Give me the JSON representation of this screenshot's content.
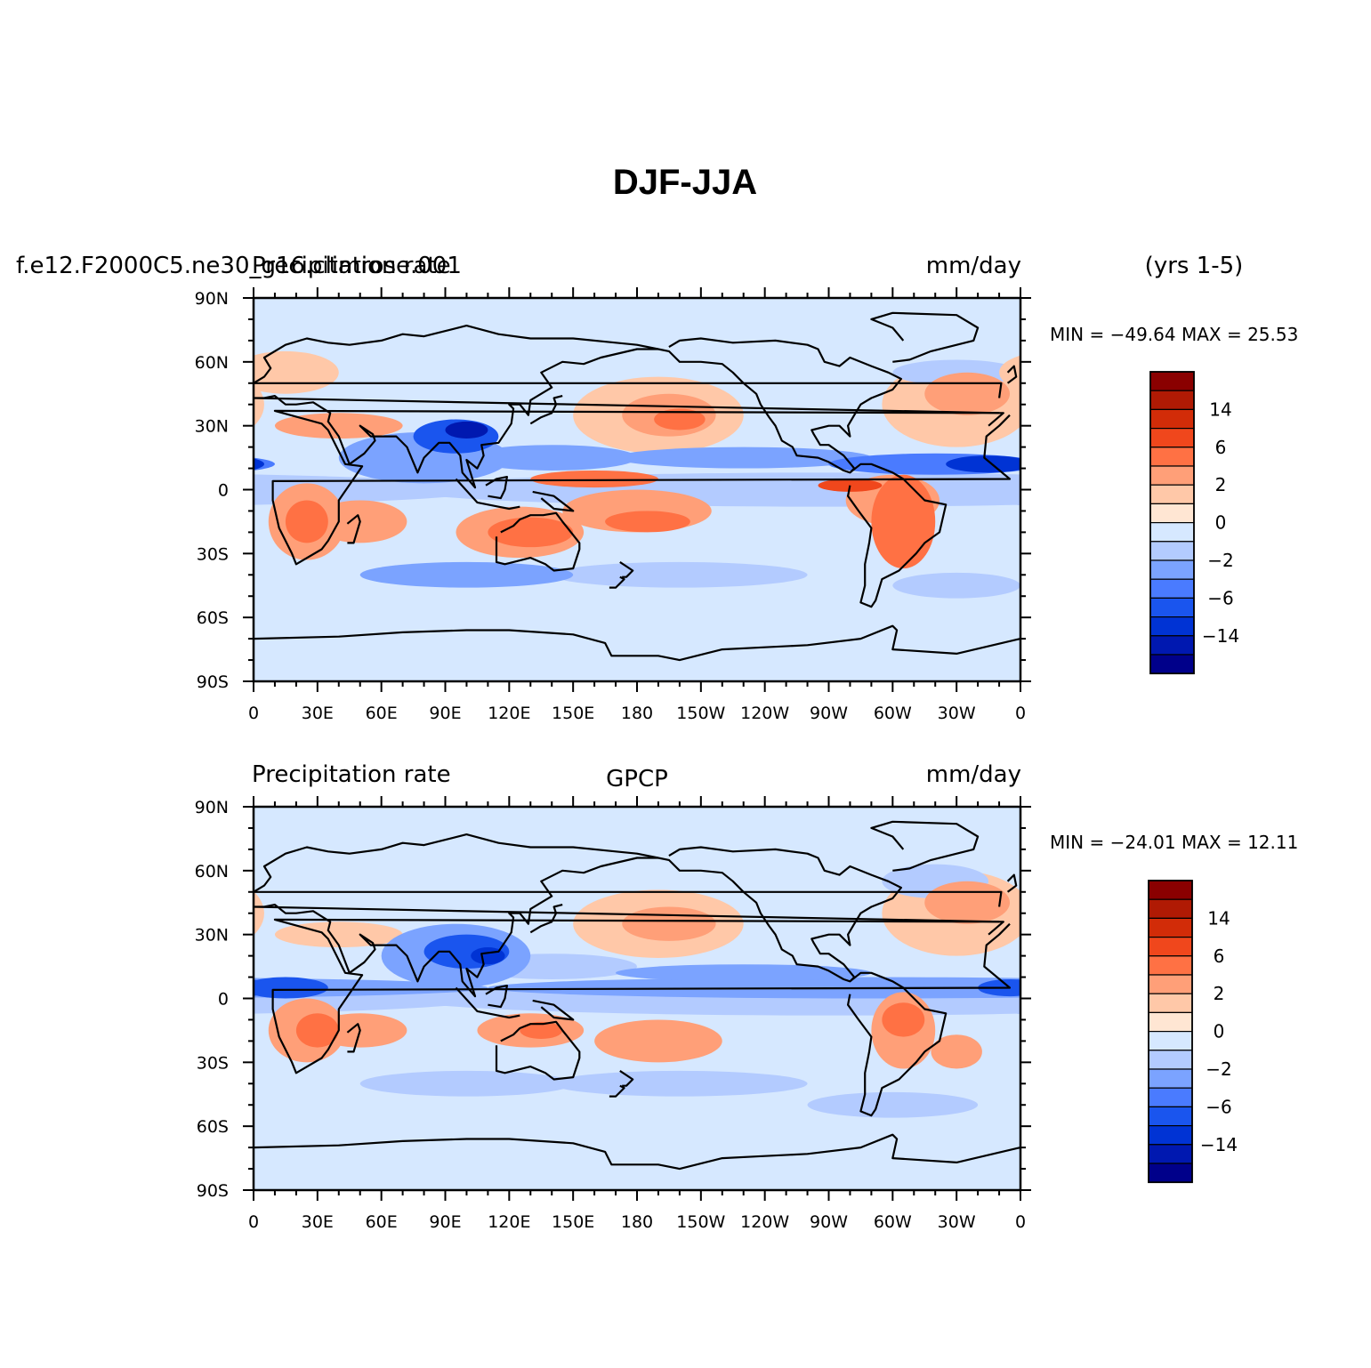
{
  "figure": {
    "title": "DJF-JJA",
    "years_label": "(yrs 1-5)"
  },
  "colors": {
    "levels_palette": [
      "#00008a",
      "#0018b0",
      "#0033d4",
      "#1a55ee",
      "#4a7bff",
      "#7ba3ff",
      "#b3cbff",
      "#d6e8ff",
      "#ffe6d3",
      "#ffc8a8",
      "#ff9f78",
      "#ff7144",
      "#f0471c",
      "#d22c08",
      "#b01a04",
      "#8a0000"
    ],
    "coast": "#000000"
  },
  "chart_data": [
    {
      "type": "heatmap",
      "left_header": "f.e12.F2000C5.ne30_g16.climrose.001",
      "left_header_overlay": "Precipitation rate",
      "center_header": "",
      "units": "mm/day",
      "stats": {
        "min_label": "MIN = −49.64 MAX =  25.53",
        "min": -49.64,
        "max": 25.53
      },
      "xlim": [
        0,
        360
      ],
      "ylim": [
        -90,
        90
      ],
      "x_tick_labels": [
        "0",
        "30E",
        "60E",
        "90E",
        "120E",
        "150E",
        "180",
        "150W",
        "120W",
        "90W",
        "60W",
        "30W",
        "0"
      ],
      "y_tick_labels": [
        "90N",
        "60N",
        "30N",
        "0",
        "30S",
        "60S",
        "90S"
      ],
      "colorbar_labels": [
        "14",
        "6",
        "2",
        "0",
        "−2",
        "−6",
        "−14"
      ]
    },
    {
      "type": "heatmap",
      "left_header": "Precipitation rate",
      "center_header": "GPCP",
      "units": "mm/day",
      "stats": {
        "min_label": "MIN = −24.01 MAX =  12.11",
        "min": -24.01,
        "max": 12.11
      },
      "xlim": [
        0,
        360
      ],
      "ylim": [
        -90,
        90
      ],
      "x_tick_labels": [
        "0",
        "30E",
        "60E",
        "90E",
        "120E",
        "150E",
        "180",
        "150W",
        "120W",
        "90W",
        "60W",
        "30W",
        "0"
      ],
      "y_tick_labels": [
        "90N",
        "60N",
        "30N",
        "0",
        "30S",
        "60S",
        "90S"
      ],
      "colorbar_labels": [
        "14",
        "6",
        "2",
        "0",
        "−2",
        "−6",
        "−14"
      ]
    }
  ]
}
